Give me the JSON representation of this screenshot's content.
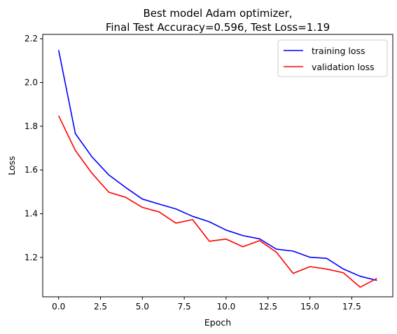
{
  "chart_data": {
    "type": "line",
    "title_line1": "Best model Adam optimizer,",
    "title_line2": "Final Test Accuracy=0.596, Test Loss=1.19",
    "xlabel": "Epoch",
    "ylabel": "Loss",
    "xlim": [
      -0.95,
      19.95
    ],
    "ylim": [
      1.02,
      2.22
    ],
    "xticks": [
      0.0,
      2.5,
      5.0,
      7.5,
      10.0,
      12.5,
      15.0,
      17.5
    ],
    "xtick_labels": [
      "0.0",
      "2.5",
      "5.0",
      "7.5",
      "10.0",
      "12.5",
      "15.0",
      "17.5"
    ],
    "yticks": [
      1.2,
      1.4,
      1.6,
      1.8,
      2.0,
      2.2
    ],
    "ytick_labels": [
      "1.2",
      "1.4",
      "1.6",
      "1.8",
      "2.0",
      "2.2"
    ],
    "grid": false,
    "legend_position": "top-right",
    "x": [
      0,
      1,
      2,
      3,
      4,
      5,
      6,
      7,
      8,
      9,
      10,
      11,
      12,
      13,
      14,
      15,
      16,
      17,
      18,
      19
    ],
    "series": [
      {
        "name": "training loss",
        "color": "#0000ff",
        "values": [
          2.148,
          1.766,
          1.659,
          1.577,
          1.52,
          1.467,
          1.444,
          1.422,
          1.388,
          1.363,
          1.325,
          1.3,
          1.285,
          1.238,
          1.229,
          1.201,
          1.196,
          1.147,
          1.114,
          1.095
        ]
      },
      {
        "name": "validation loss",
        "color": "#ff0000",
        "values": [
          1.848,
          1.689,
          1.584,
          1.498,
          1.475,
          1.429,
          1.408,
          1.357,
          1.373,
          1.274,
          1.284,
          1.249,
          1.277,
          1.224,
          1.127,
          1.158,
          1.147,
          1.13,
          1.064,
          1.104
        ]
      }
    ]
  }
}
